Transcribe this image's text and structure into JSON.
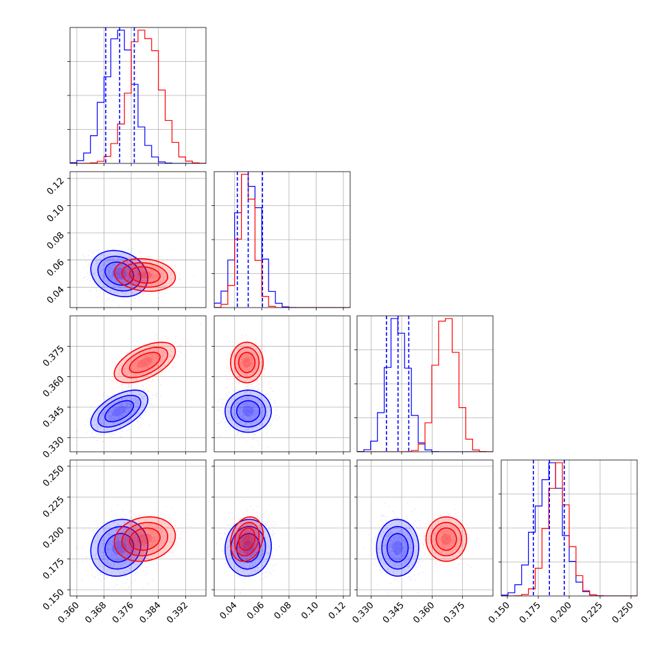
{
  "chart_data": {
    "type": "corner",
    "parameters": [
      {
        "index": 0,
        "range": [
          0.358,
          0.398
        ],
        "ticks": [
          "0.360",
          "0.368",
          "0.376",
          "0.384",
          "0.392"
        ]
      },
      {
        "index": 1,
        "range": [
          0.025,
          0.125
        ],
        "ticks": [
          "0.04",
          "0.06",
          "0.08",
          "0.10",
          "0.12"
        ]
      },
      {
        "index": 2,
        "range": [
          0.323,
          0.39
        ],
        "ticks": [
          "0.330",
          "0.345",
          "0.360",
          "0.375"
        ]
      },
      {
        "index": 3,
        "range": [
          0.145,
          0.255
        ],
        "ticks": [
          "0.150",
          "0.175",
          "0.200",
          "0.225",
          "0.250"
        ]
      }
    ],
    "series": [
      {
        "color": "#0000ff",
        "mean": [
          0.3725,
          0.05,
          0.343,
          0.184
        ],
        "sd": [
          0.0042,
          0.0085,
          0.0052,
          0.0115
        ],
        "corr01": -0.2,
        "corr02": 0.55,
        "corr03": 0.1,
        "corr12": 0.0,
        "corr13": 0.05,
        "corr23": 0.0
      },
      {
        "color": "#ff0000",
        "mean": [
          0.38,
          0.049,
          0.367,
          0.191
        ],
        "sd": [
          0.0045,
          0.006,
          0.005,
          0.009
        ],
        "corr01": -0.15,
        "corr02": 0.55,
        "corr03": 0.15,
        "corr12": 0.0,
        "corr13": 0.2,
        "corr23": 0.0
      }
    ],
    "quantile_lines": {
      "color": "#0000ff",
      "style": "dashed",
      "values": [
        [
          0.3685,
          0.3726,
          0.3769
        ],
        [
          0.042,
          0.05,
          0.0605
        ],
        [
          0.3375,
          0.3432,
          0.3485
        ],
        [
          0.171,
          0.184,
          0.196
        ]
      ]
    },
    "grid": true,
    "legend": "none"
  },
  "colors": {
    "blue": "#0000ff",
    "red": "#ff0000",
    "grid": "#b0b0b0"
  }
}
